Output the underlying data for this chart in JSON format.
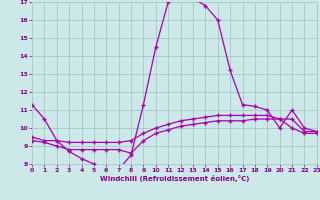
{
  "background_color": "#cce8e8",
  "grid_color": "#aacccc",
  "line_color": "#aa00aa",
  "xlabel": "Windchill (Refroidissement éolien,°C)",
  "xlabel_color": "#880088",
  "tick_color": "#880088",
  "xmin": 0,
  "xmax": 23,
  "ymin": 8,
  "ymax": 17,
  "yticks": [
    8,
    9,
    10,
    11,
    12,
    13,
    14,
    15,
    16,
    17
  ],
  "xticks": [
    0,
    1,
    2,
    3,
    4,
    5,
    6,
    7,
    8,
    9,
    10,
    11,
    12,
    13,
    14,
    15,
    16,
    17,
    18,
    19,
    20,
    21,
    22,
    23
  ],
  "line1_x": [
    0,
    1,
    2,
    3,
    4,
    5,
    6,
    7,
    8,
    9,
    10,
    11,
    12,
    13,
    14,
    15,
    16,
    17,
    18,
    19,
    20,
    21,
    22,
    23
  ],
  "line1_y": [
    11.3,
    10.5,
    9.3,
    8.7,
    8.3,
    8.0,
    7.8,
    7.7,
    8.5,
    11.3,
    14.5,
    17.0,
    17.2,
    17.2,
    16.8,
    16.0,
    13.2,
    11.3,
    11.2,
    11.0,
    10.0,
    11.0,
    10.0,
    9.8
  ],
  "line2_x": [
    0,
    1,
    2,
    3,
    4,
    5,
    6,
    7,
    8,
    9,
    10,
    11,
    12,
    13,
    14,
    15,
    16,
    17,
    18,
    19,
    20,
    21,
    22,
    23
  ],
  "line2_y": [
    9.5,
    9.3,
    9.3,
    9.2,
    9.2,
    9.2,
    9.2,
    9.2,
    9.3,
    9.7,
    10.0,
    10.2,
    10.4,
    10.5,
    10.6,
    10.7,
    10.7,
    10.7,
    10.7,
    10.7,
    10.5,
    10.5,
    9.8,
    9.8
  ],
  "line3_x": [
    0,
    1,
    2,
    3,
    4,
    5,
    6,
    7,
    8,
    9,
    10,
    11,
    12,
    13,
    14,
    15,
    16,
    17,
    18,
    19,
    20,
    21,
    22,
    23
  ],
  "line3_y": [
    9.3,
    9.2,
    9.0,
    8.8,
    8.8,
    8.8,
    8.8,
    8.8,
    8.6,
    9.3,
    9.7,
    9.9,
    10.1,
    10.2,
    10.3,
    10.4,
    10.4,
    10.4,
    10.5,
    10.5,
    10.5,
    10.0,
    9.7,
    9.7
  ]
}
